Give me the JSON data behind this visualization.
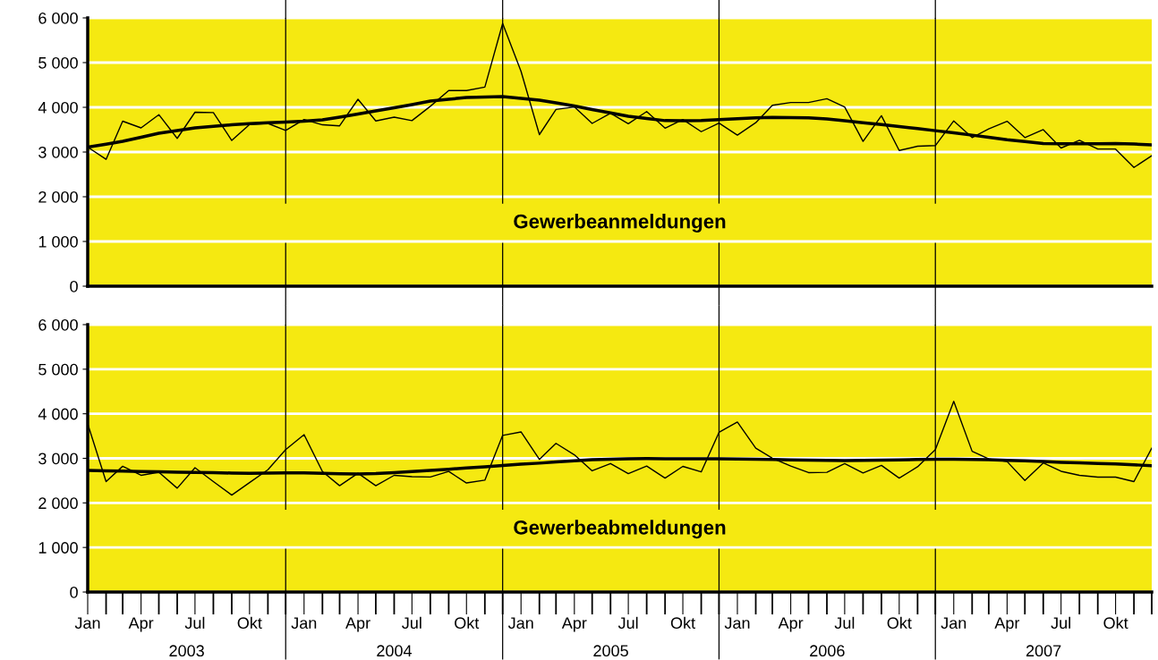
{
  "chart_data": [
    {
      "type": "line",
      "title": "Gewerbeanmeldungen",
      "x": [
        "2003-01",
        "2003-02",
        "2003-03",
        "2003-04",
        "2003-05",
        "2003-06",
        "2003-07",
        "2003-08",
        "2003-09",
        "2003-10",
        "2003-11",
        "2003-12",
        "2004-01",
        "2004-02",
        "2004-03",
        "2004-04",
        "2004-05",
        "2004-06",
        "2004-07",
        "2004-08",
        "2004-09",
        "2004-10",
        "2004-11",
        "2004-12",
        "2005-01",
        "2005-02",
        "2005-03",
        "2005-04",
        "2005-05",
        "2005-06",
        "2005-07",
        "2005-08",
        "2005-09",
        "2005-10",
        "2005-11",
        "2005-12",
        "2006-01",
        "2006-02",
        "2006-03",
        "2006-04",
        "2006-05",
        "2006-06",
        "2006-07",
        "2006-08",
        "2006-09",
        "2006-10",
        "2006-11",
        "2006-12",
        "2007-01",
        "2007-02",
        "2007-03",
        "2007-04",
        "2007-05",
        "2007-06",
        "2007-07",
        "2007-08",
        "2007-09",
        "2007-10",
        "2007-11",
        "2007-12"
      ],
      "series": [
        {
          "color": "#000000",
          "values": [
            3110,
            2836,
            3690,
            3540,
            3836,
            3305,
            3890,
            3883,
            3258,
            3617,
            3640,
            3484,
            3727,
            3609,
            3586,
            4180,
            3695,
            3781,
            3703,
            4023,
            4375,
            4375,
            4453,
            5875,
            4805,
            3390,
            3953,
            4008,
            3640,
            3867,
            3634,
            3905,
            3533,
            3727,
            3455,
            3649,
            3377,
            3657,
            4045,
            4107,
            4107,
            4193,
            4006,
            3238,
            3812,
            3036,
            3129,
            3144,
            3696,
            3323,
            3517,
            3688,
            3323,
            3502,
            3090,
            3261,
            3067,
            3067,
            2655,
            2919
          ]
        },
        {
          "color": "#000000",
          "values": [
            3110,
            3175,
            3240,
            3330,
            3420,
            3480,
            3540,
            3575,
            3610,
            3635,
            3656,
            3670,
            3690,
            3720,
            3780,
            3850,
            3920,
            3990,
            4060,
            4140,
            4180,
            4220,
            4230,
            4240,
            4200,
            4160,
            4100,
            4030,
            3950,
            3875,
            3800,
            3750,
            3703,
            3700,
            3703,
            3727,
            3745,
            3765,
            3773,
            3770,
            3765,
            3742,
            3700,
            3657,
            3615,
            3571,
            3525,
            3478,
            3430,
            3377,
            3330,
            3276,
            3235,
            3191,
            3183,
            3183,
            3183,
            3191,
            3180,
            3160
          ]
        }
      ],
      "xlim": [
        "2003-01",
        "2007-12"
      ],
      "ylim": [
        0,
        6000
      ],
      "yticks": [
        0,
        {
          "value": 1000,
          "label": "1 000"
        },
        {
          "value": 2000,
          "label": "2 000"
        },
        {
          "value": 3000,
          "label": "3 000"
        },
        {
          "value": 4000,
          "label": "4 000"
        },
        {
          "value": 5000,
          "label": "5 000"
        },
        {
          "value": 6000,
          "label": "6 000"
        }
      ],
      "ref_lines": [
        {
          "axis": "x",
          "value": "2003-12",
          "color": "#000000"
        },
        {
          "axis": "x",
          "value": "2004-12",
          "color": "#000000"
        },
        {
          "axis": "x",
          "value": "2005-12",
          "color": "#000000"
        },
        {
          "axis": "x",
          "value": "2006-12",
          "color": "#000000"
        }
      ],
      "grid": "y",
      "tick_labels": "y",
      "marker": "none",
      "line_style": "solid"
    },
    {
      "type": "line",
      "title": "Gewerbeabmeldungen",
      "x": [
        "2003-01",
        "2003-02",
        "2003-03",
        "2003-04",
        "2003-05",
        "2003-06",
        "2003-07",
        "2003-08",
        "2003-09",
        "2003-10",
        "2003-11",
        "2003-12",
        "2004-01",
        "2004-02",
        "2004-03",
        "2004-04",
        "2004-05",
        "2004-06",
        "2004-07",
        "2004-08",
        "2004-09",
        "2004-10",
        "2004-11",
        "2004-12",
        "2005-01",
        "2005-02",
        "2005-03",
        "2005-04",
        "2005-05",
        "2005-06",
        "2005-07",
        "2005-08",
        "2005-09",
        "2005-10",
        "2005-11",
        "2005-12",
        "2006-01",
        "2006-02",
        "2006-03",
        "2006-04",
        "2006-05",
        "2006-06",
        "2006-07",
        "2006-08",
        "2006-09",
        "2006-10",
        "2006-11",
        "2006-12",
        "2007-01",
        "2007-02",
        "2007-03",
        "2007-04",
        "2007-05",
        "2007-06",
        "2007-07",
        "2007-08",
        "2007-09",
        "2007-10",
        "2007-11",
        "2007-12"
      ],
      "series": [
        {
          "color": "#000000",
          "values": [
            3772,
            2479,
            2822,
            2619,
            2689,
            2330,
            2790,
            2479,
            2175,
            2455,
            2744,
            3196,
            3531,
            2705,
            2385,
            2666,
            2385,
            2619,
            2588,
            2580,
            2705,
            2447,
            2510,
            3515,
            3593,
            2977,
            3336,
            3079,
            2720,
            2884,
            2656,
            2826,
            2556,
            2819,
            2695,
            3583,
            3815,
            3228,
            3004,
            2826,
            2680,
            2687,
            2880,
            2672,
            2842,
            2556,
            2811,
            3197,
            4278,
            3158,
            2988,
            2927,
            2502,
            2896,
            2710,
            2618,
            2579,
            2579,
            2479,
            3228
          ]
        },
        {
          "color": "#000000",
          "values": [
            2728,
            2720,
            2712,
            2705,
            2697,
            2689,
            2683,
            2677,
            2670,
            2666,
            2668,
            2672,
            2673,
            2665,
            2655,
            2650,
            2660,
            2680,
            2705,
            2730,
            2756,
            2783,
            2810,
            2840,
            2870,
            2892,
            2920,
            2945,
            2970,
            2980,
            2990,
            2993,
            2990,
            2988,
            2988,
            2988,
            2985,
            2980,
            2973,
            2965,
            2960,
            2955,
            2950,
            2955,
            2960,
            2965,
            2973,
            2981,
            2981,
            2975,
            2968,
            2957,
            2943,
            2928,
            2911,
            2898,
            2885,
            2873,
            2855,
            2834
          ]
        }
      ],
      "xlim": [
        "2003-01",
        "2007-12"
      ],
      "xticks": [
        {
          "value": "2003-01",
          "label": "Jan"
        },
        {
          "value": "2003-04",
          "label": "Apr"
        },
        {
          "value": "2003-07",
          "label": "Jul"
        },
        {
          "value": "2003-10",
          "label": "Okt"
        },
        {
          "value": "2004-01",
          "label": "Jan"
        },
        {
          "value": "2004-04",
          "label": "Apr"
        },
        {
          "value": "2004-07",
          "label": "Jul"
        },
        {
          "value": "2004-10",
          "label": "Okt"
        },
        {
          "value": "2005-01",
          "label": "Jan"
        },
        {
          "value": "2005-04",
          "label": "Apr"
        },
        {
          "value": "2005-07",
          "label": "Jul"
        },
        {
          "value": "2005-10",
          "label": "Okt"
        },
        {
          "value": "2006-01",
          "label": "Jan"
        },
        {
          "value": "2006-04",
          "label": "Apr"
        },
        {
          "value": "2006-07",
          "label": "Jul"
        },
        {
          "value": "2006-10",
          "label": "Okt"
        },
        {
          "value": "2007-01",
          "label": "Jan"
        },
        {
          "value": "2007-04",
          "label": "Apr"
        },
        {
          "value": "2007-07",
          "label": "Jul"
        },
        {
          "value": "2007-10",
          "label": "Okt"
        }
      ],
      "ylim": [
        0,
        6000
      ],
      "yticks": [
        0,
        {
          "value": 1000,
          "label": "1 000"
        },
        {
          "value": 2000,
          "label": "2 000"
        },
        {
          "value": 3000,
          "label": "3 000"
        },
        {
          "value": 4000,
          "label": "4 000"
        },
        {
          "value": 5000,
          "label": "5 000"
        },
        {
          "value": 6000,
          "label": "6 000"
        }
      ],
      "ref_lines": [
        {
          "axis": "x",
          "value": "2003-12",
          "color": "#000000"
        },
        {
          "axis": "x",
          "value": "2004-12",
          "color": "#000000"
        },
        {
          "axis": "x",
          "value": "2005-12",
          "color": "#000000"
        },
        {
          "axis": "x",
          "value": "2006-12",
          "color": "#000000"
        }
      ],
      "annotations": [
        "2003",
        "2004",
        "2005",
        "2006",
        "2007"
      ],
      "grid": "y",
      "marker": "none",
      "line_style": "solid"
    }
  ]
}
